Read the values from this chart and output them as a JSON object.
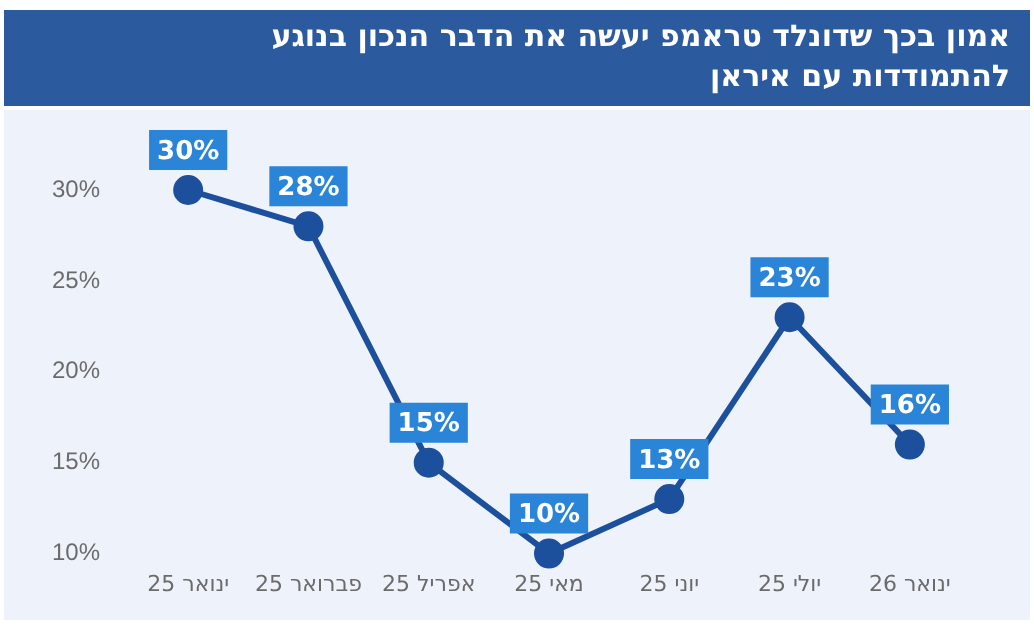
{
  "chart_data": {
    "type": "line",
    "title": "אמון בכך שדונלד טראמפ יעשה את הדבר הנכון בנוגע להתמודדות עם איראן",
    "categories": [
      "ינואר 25",
      "פברואר 25",
      "אפריל 25",
      "מאי 25",
      "יוני 25",
      "יולי 25",
      "ינואר 26"
    ],
    "series": [
      {
        "color": "#1c4f9c",
        "values": [
          30,
          28,
          15,
          10,
          13,
          23,
          16
        ],
        "value_labels": [
          "30%",
          "28%",
          "15%",
          "10%",
          "13%",
          "23%",
          "16%"
        ]
      }
    ],
    "ylim": [
      10,
      30
    ],
    "yticks": [
      {
        "value": 10,
        "label": "10%"
      },
      {
        "value": 15,
        "label": "15%"
      },
      {
        "value": 20,
        "label": "20%"
      },
      {
        "value": 25,
        "label": "25%"
      },
      {
        "value": 30,
        "label": "30%"
      }
    ],
    "grid": false,
    "legend": false,
    "marker": "circle",
    "line_style": "solid"
  }
}
